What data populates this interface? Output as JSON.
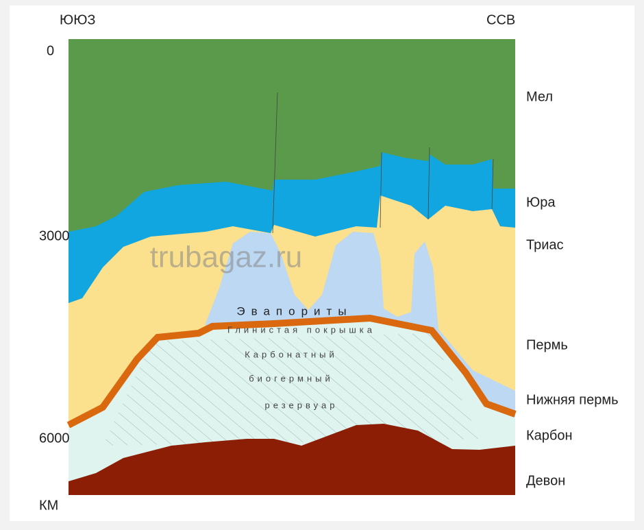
{
  "directions": {
    "left": "ЮЮЗ",
    "right": "ССВ"
  },
  "depth_labels": [
    "0",
    "3000",
    "6000"
  ],
  "depth_unit": "КМ",
  "layers": [
    "Мел",
    "Юра",
    "Триас",
    "Пермь",
    "Нижняя пермь",
    "Карбон",
    "Девон"
  ],
  "bodies": {
    "evaporites": "Эвапориты",
    "clay_cap": "Глинистая покрышка",
    "reservoir": [
      "Карбонатный",
      "биогермный",
      "резервуар"
    ]
  },
  "watermark": "trubagaz.ru"
}
